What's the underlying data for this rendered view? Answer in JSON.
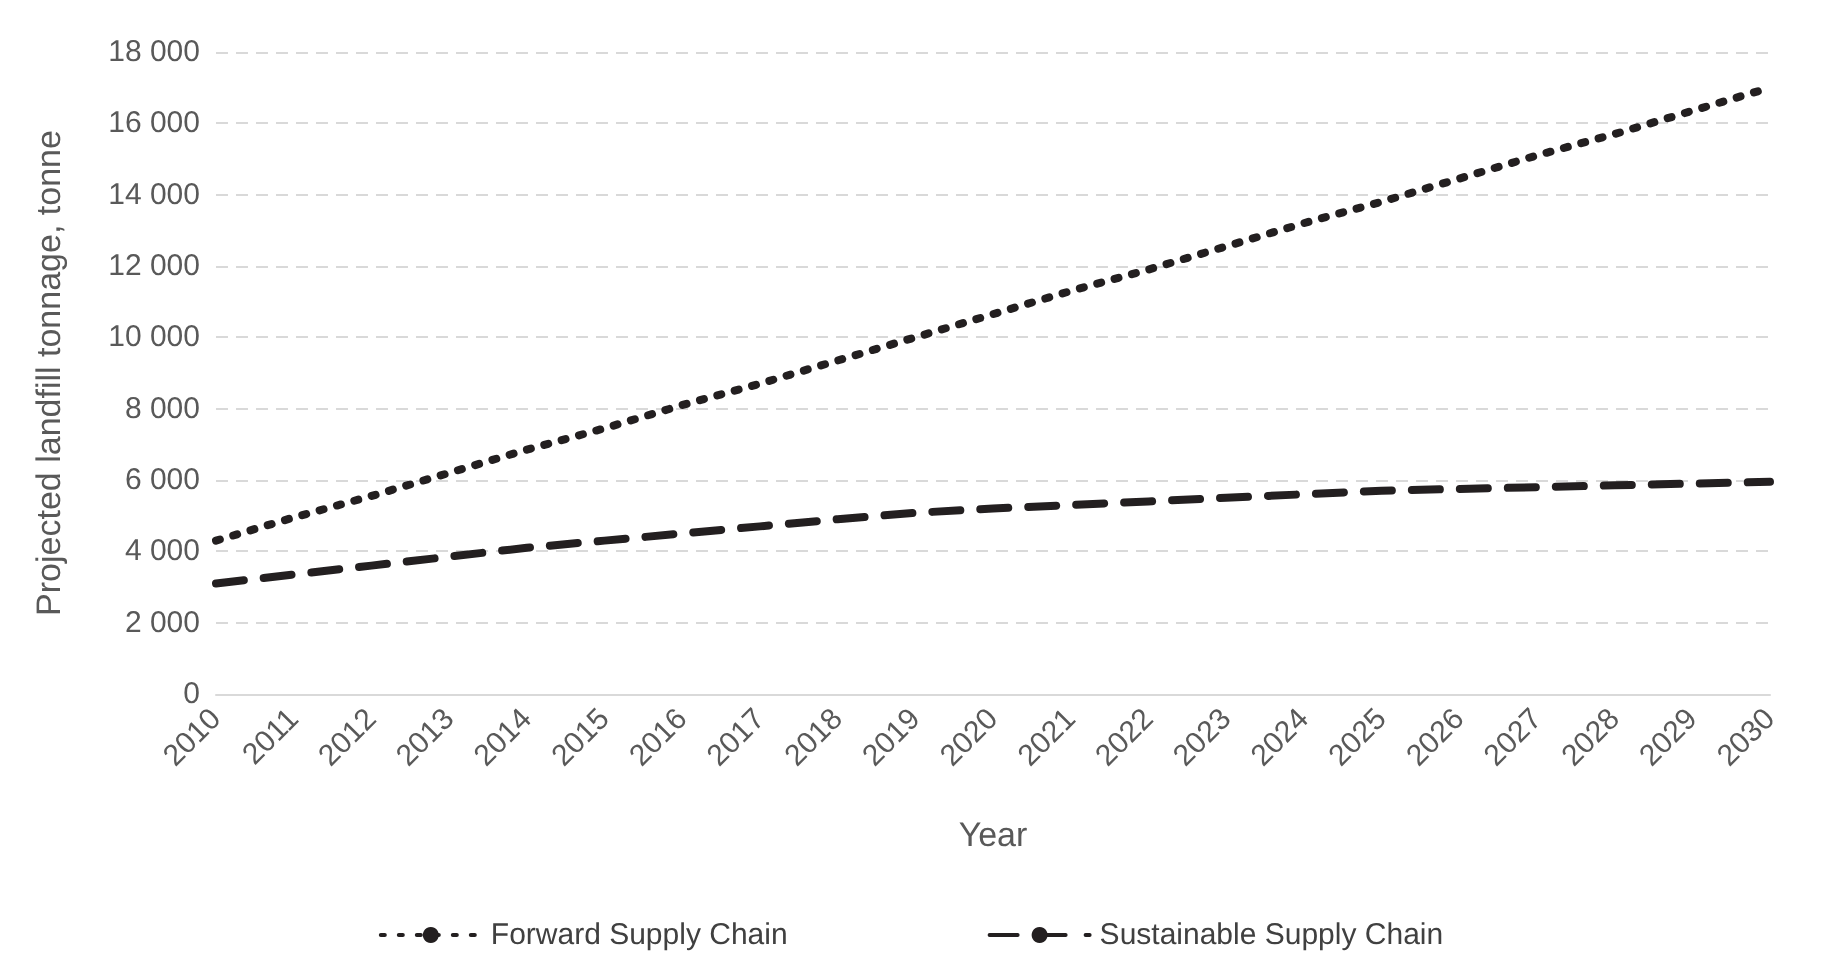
{
  "chart_data": {
    "type": "line",
    "xlabel": "Year",
    "ylabel": "Projected landfill tonnage, tonne",
    "categories": [
      "2010",
      "2011",
      "2012",
      "2013",
      "2014",
      "2015",
      "2016",
      "2017",
      "2018",
      "2019",
      "2020",
      "2021",
      "2022",
      "2023",
      "2024",
      "2025",
      "2026",
      "2027",
      "2028",
      "2029",
      "2030"
    ],
    "series": [
      {
        "name": "Forward Supply Chain",
        "color": "#231f20",
        "line_style": "dotted",
        "values": [
          4300,
          4950,
          5550,
          6200,
          6850,
          7450,
          8100,
          8700,
          9350,
          10000,
          10650,
          11300,
          11900,
          12550,
          13200,
          13800,
          14450,
          15100,
          15700,
          16350,
          17000
        ]
      },
      {
        "name": "Sustainable Supply Chain",
        "color": "#231f20",
        "line_style": "dashed",
        "values": [
          3100,
          3350,
          3600,
          3850,
          4100,
          4300,
          4500,
          4700,
          4900,
          5080,
          5200,
          5300,
          5400,
          5500,
          5600,
          5700,
          5750,
          5800,
          5850,
          5900,
          5950
        ]
      }
    ],
    "ylim": [
      0,
      18000
    ],
    "yticks": [
      {
        "value": 0,
        "label": "0"
      },
      {
        "value": 2000,
        "label": "2 000"
      },
      {
        "value": 4000,
        "label": "4 000"
      },
      {
        "value": 6000,
        "label": "6 000"
      },
      {
        "value": 8000,
        "label": "8 000"
      },
      {
        "value": 10000,
        "label": "10 000"
      },
      {
        "value": 12000,
        "label": "12 000"
      },
      {
        "value": 14000,
        "label": "14 000"
      },
      {
        "value": 16000,
        "label": "16 000"
      },
      {
        "value": 18000,
        "label": "18 000"
      }
    ],
    "grid": "y",
    "legend": "bottom",
    "marker": "none"
  }
}
